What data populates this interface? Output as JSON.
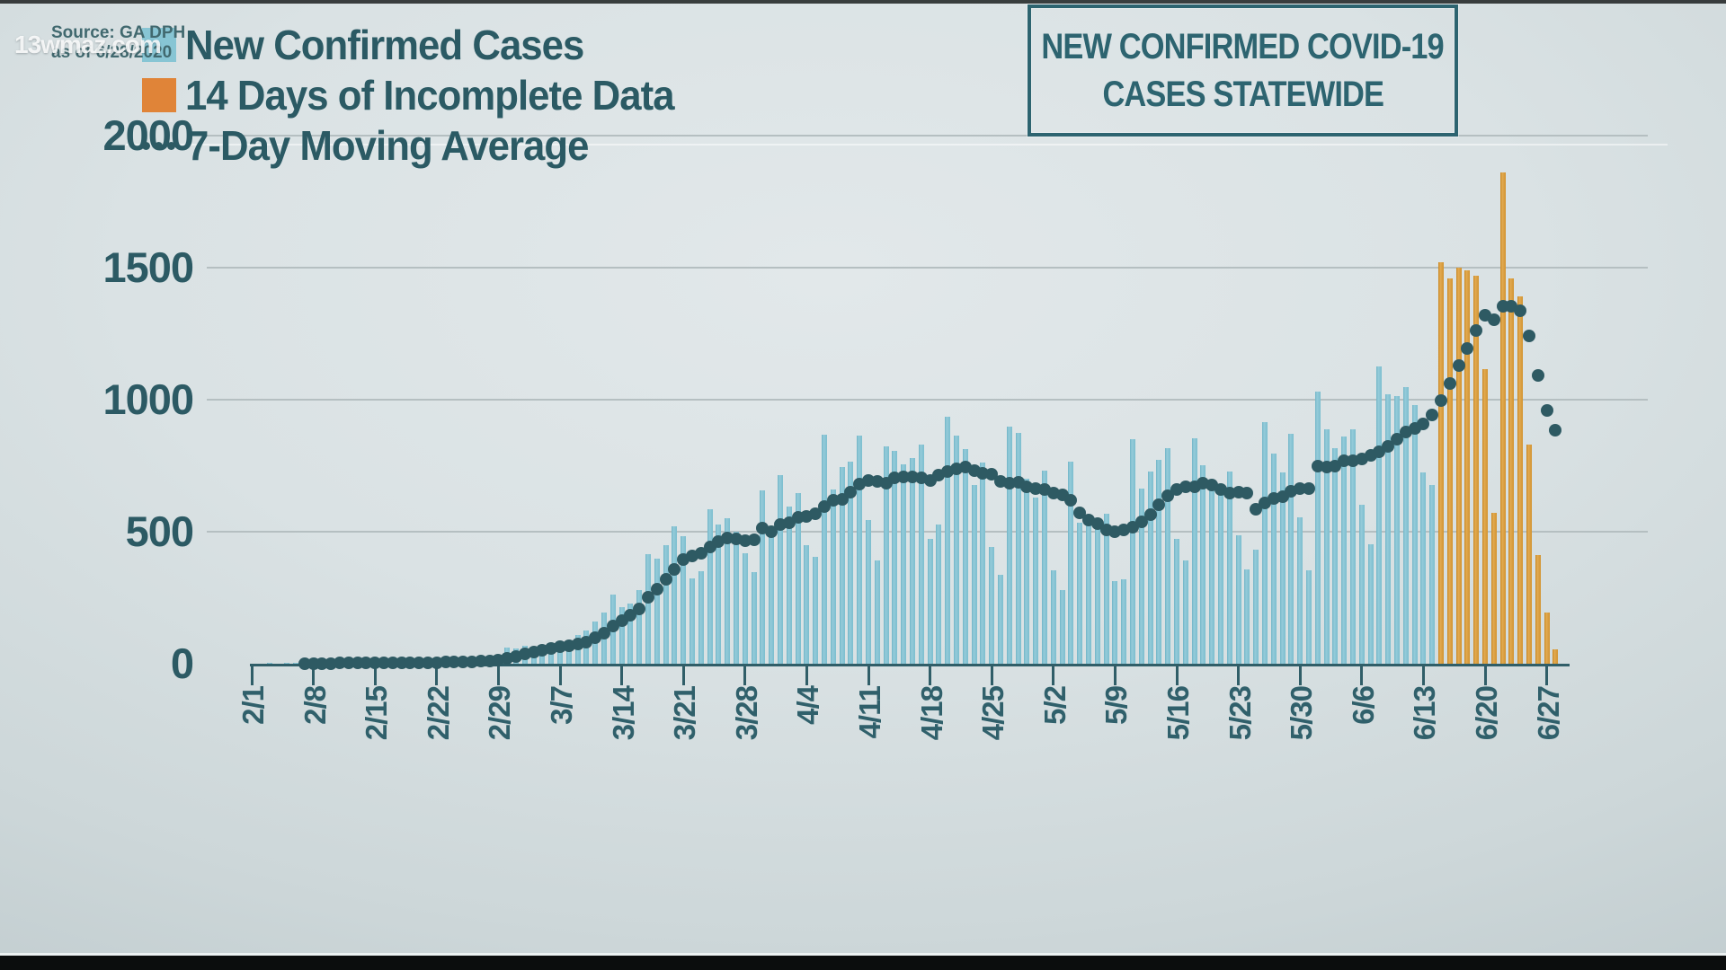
{
  "watermark": "13wmaz.com",
  "source": {
    "line1": "Source: GA DPH",
    "line2": "as of 6/28/2020"
  },
  "title_box": {
    "line1": "NEW CONFIRMED COVID-19",
    "line2": "CASES STATEWIDE"
  },
  "legend": {
    "items": [
      {
        "label": "New Confirmed Cases",
        "swatch": "blue-square",
        "color": "#87c5d4"
      },
      {
        "label": "14 Days of Incomplete Data",
        "swatch": "orange-square",
        "color": "#e08438"
      },
      {
        "label": "7-Day Moving Average",
        "swatch": "dotted-line",
        "color": "#2e5a63"
      }
    ]
  },
  "colors": {
    "confirmed_bar": "#87c5d4",
    "incomplete_bar": "#d89a3a",
    "moving_average_dot": "#2e5a63",
    "teal_text": "#2c5a64",
    "gridline": "#b5bfc1"
  },
  "chart_data": {
    "type": "bar",
    "title": "NEW CONFIRMED COVID-19 CASES STATEWIDE",
    "xlabel": "",
    "ylabel": "",
    "ylim": [
      0,
      2040
    ],
    "grid": true,
    "y_ticks": [
      0,
      500,
      1000,
      1500,
      2000
    ],
    "x_tick_labels": [
      "2/1",
      "2/8",
      "2/15",
      "2/22",
      "2/29",
      "3/7",
      "3/14",
      "3/21",
      "3/28",
      "4/4",
      "4/11",
      "4/18",
      "4/25",
      "5/2",
      "5/9",
      "5/16",
      "5/23",
      "5/30",
      "6/6",
      "6/13",
      "6/20",
      "6/27"
    ],
    "start_date": "2/1/2020",
    "end_date": "6/28/2020",
    "incomplete_start_index": 135,
    "incomplete_days": 14,
    "series": [
      {
        "name": "Daily new confirmed cases (2/1/2020 - 6/28/2020, last 14 days incomplete)",
        "values": [
          0,
          0,
          1,
          0,
          2,
          1,
          2,
          1,
          2,
          2,
          3,
          2,
          3,
          3,
          4,
          3,
          5,
          4,
          5,
          6,
          5,
          7,
          6,
          8,
          10,
          12,
          15,
          24,
          22,
          60,
          57,
          68,
          57,
          68,
          65,
          80,
          77,
          110,
          125,
          160,
          195,
          262,
          215,
          227,
          278,
          414,
          397,
          448,
          520,
          482,
          323,
          350,
          584,
          527,
          550,
          500,
          418,
          347,
          658,
          500,
          714,
          596,
          646,
          450,
          404,
          868,
          660,
          745,
          766,
          863,
          545,
          392,
          823,
          806,
          755,
          779,
          829,
          472,
          527,
          935,
          863,
          812,
          676,
          761,
          442,
          337,
          898,
          874,
          700,
          629,
          731,
          354,
          279,
          765,
          534,
          527,
          517,
          568,
          313,
          320,
          850,
          663,
          728,
          772,
          816,
          473,
          391,
          853,
          751,
          677,
          660,
          728,
          486,
          357,
          432,
          915,
          796,
          724,
          870,
          554,
          354,
          1030,
          887,
          816,
          860,
          887,
          601,
          452,
          1125,
          1021,
          1014,
          1046,
          980,
          725,
          676,
          1520,
          1460,
          1500,
          1490,
          1470,
          1115,
          570,
          1860,
          1460,
          1390,
          830,
          410,
          195,
          55
        ]
      }
    ],
    "moving_average": {
      "name": "7-Day Moving Average",
      "window": 7,
      "style": "dotted",
      "derivation": "trailing 7-day mean of daily values, plotted from the 7th day"
    }
  }
}
